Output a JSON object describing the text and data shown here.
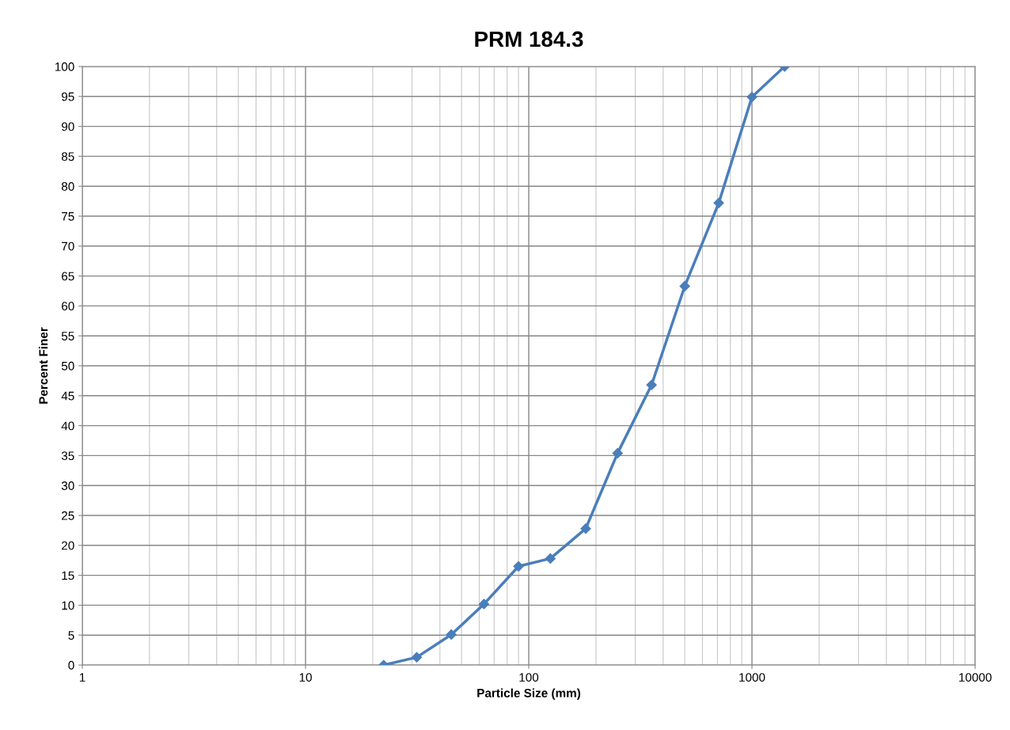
{
  "chart_data": {
    "type": "line",
    "title": "PRM 184.3",
    "xlabel": "Particle Size (mm)",
    "ylabel": "Percent Finer",
    "x": [
      22.4,
      31.5,
      45,
      63,
      90,
      125,
      180,
      250,
      355,
      500,
      710,
      1000,
      1400
    ],
    "series": [
      {
        "color": "#4a7ebb",
        "values": [
          0,
          1.3,
          5.1,
          10.2,
          16.5,
          17.8,
          22.8,
          35.4,
          46.8,
          63.3,
          77.2,
          94.9,
          100
        ]
      }
    ],
    "log": "x",
    "xlim": [
      1,
      10000
    ],
    "xticks": [
      1,
      10,
      100,
      1000,
      10000
    ],
    "ylim": [
      0,
      100
    ],
    "yticks": [
      0,
      5,
      10,
      15,
      20,
      25,
      30,
      35,
      40,
      45,
      50,
      55,
      60,
      65,
      70,
      75,
      80,
      85,
      90,
      95,
      100
    ],
    "grid": true,
    "marker": "diamond",
    "line_style": "solid",
    "legend": false
  }
}
